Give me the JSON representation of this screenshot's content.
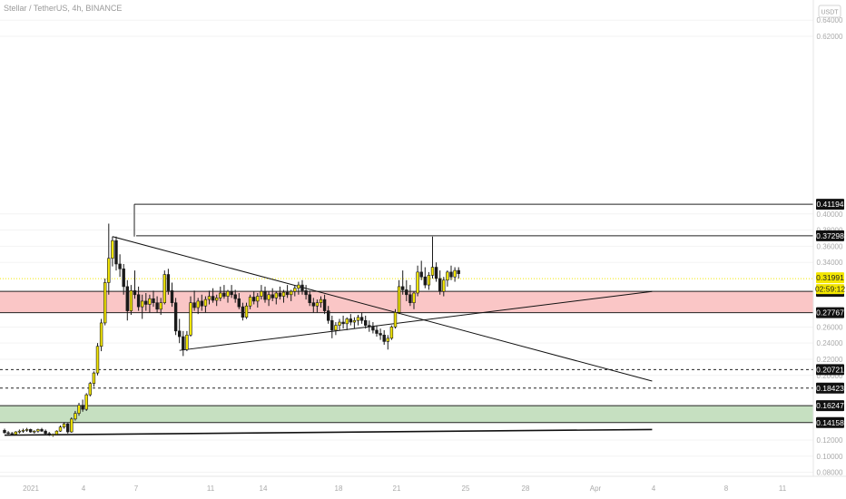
{
  "chart_data": {
    "type": "candlestick",
    "title": "Stellar / TetherUS, 4h, BINANCE",
    "currency_label": "USDT",
    "countdown": "02:59:12",
    "ylim": [
      0.075,
      0.665
    ],
    "y_ticks": [
      {
        "value": 0.64,
        "label": "0.64000"
      },
      {
        "value": 0.62,
        "label": "0.62000"
      },
      {
        "value": 0.4,
        "label": "0.40000"
      },
      {
        "value": 0.38,
        "label": "0.38000"
      },
      {
        "value": 0.36,
        "label": "0.36000"
      },
      {
        "value": 0.34,
        "label": "0.34000"
      },
      {
        "value": 0.26,
        "label": "0.26000"
      },
      {
        "value": 0.24,
        "label": "0.24000"
      },
      {
        "value": 0.22,
        "label": "0.22000"
      },
      {
        "value": 0.2,
        "label": "0.20000"
      },
      {
        "value": 0.12,
        "label": "0.12000"
      },
      {
        "value": 0.1,
        "label": "0.10000"
      },
      {
        "value": 0.08,
        "label": "0.08000"
      }
    ],
    "x_ticks": [
      "2021",
      "4",
      "7",
      "11",
      "14",
      "18",
      "21",
      "25",
      "28",
      "Apr",
      "4",
      "8",
      "11"
    ],
    "price_levels": [
      {
        "value": 0.41194,
        "label": "0.41194",
        "style": "solid",
        "dark": true
      },
      {
        "value": 0.37298,
        "label": "0.37298",
        "style": "solid",
        "dark": true
      },
      {
        "value": 0.30406,
        "label": "0.30406",
        "style": "solid",
        "dark": true
      },
      {
        "value": 0.27767,
        "label": "0.27767",
        "style": "solid",
        "dark": true
      },
      {
        "value": 0.20721,
        "label": "0.20721",
        "style": "dashed",
        "dark": true
      },
      {
        "value": 0.18423,
        "label": "0.18423",
        "style": "dashed",
        "dark": true
      },
      {
        "value": 0.16247,
        "label": "0.16247",
        "style": "solid",
        "dark": true
      },
      {
        "value": 0.14158,
        "label": "0.14158",
        "style": "solid",
        "dark": true
      }
    ],
    "current_price": {
      "value": 0.31991,
      "label": "0.31991",
      "color": "#f3e600"
    },
    "zones": [
      {
        "name": "resistance",
        "from": 0.27767,
        "to": 0.30406,
        "color": "#f8a8a8"
      },
      {
        "name": "support",
        "from": 0.14158,
        "to": 0.16247,
        "color": "#a8cf9f"
      }
    ],
    "trend_lines": [
      {
        "from": {
          "bar": 29,
          "price": 0.372
        },
        "to": {
          "bar": 174,
          "price": 0.193
        }
      },
      {
        "from": {
          "bar": 47,
          "price": 0.231
        },
        "to": {
          "bar": 174,
          "price": 0.304
        }
      },
      {
        "from": {
          "bar": 0,
          "price": 0.126
        },
        "to": {
          "bar": 174,
          "price": 0.133
        }
      }
    ],
    "candle_colors": {
      "up": "#f3e600",
      "down": "#1a1a1a",
      "wick": "#1a1a1a"
    },
    "candles": [
      [
        0.132,
        0.134,
        0.128,
        0.129
      ],
      [
        0.129,
        0.131,
        0.127,
        0.128
      ],
      [
        0.128,
        0.13,
        0.126,
        0.127
      ],
      [
        0.127,
        0.131,
        0.126,
        0.13
      ],
      [
        0.13,
        0.133,
        0.128,
        0.131
      ],
      [
        0.131,
        0.134,
        0.129,
        0.132
      ],
      [
        0.132,
        0.135,
        0.13,
        0.133
      ],
      [
        0.133,
        0.134,
        0.129,
        0.13
      ],
      [
        0.13,
        0.132,
        0.128,
        0.131
      ],
      [
        0.131,
        0.134,
        0.129,
        0.133
      ],
      [
        0.133,
        0.135,
        0.13,
        0.131
      ],
      [
        0.131,
        0.133,
        0.127,
        0.128
      ],
      [
        0.128,
        0.13,
        0.125,
        0.126
      ],
      [
        0.126,
        0.128,
        0.124,
        0.127
      ],
      [
        0.127,
        0.132,
        0.126,
        0.131
      ],
      [
        0.131,
        0.138,
        0.13,
        0.136
      ],
      [
        0.136,
        0.142,
        0.134,
        0.14
      ],
      [
        0.14,
        0.141,
        0.128,
        0.13
      ],
      [
        0.13,
        0.148,
        0.129,
        0.146
      ],
      [
        0.146,
        0.156,
        0.144,
        0.153
      ],
      [
        0.153,
        0.166,
        0.15,
        0.163
      ],
      [
        0.163,
        0.17,
        0.155,
        0.158
      ],
      [
        0.158,
        0.178,
        0.156,
        0.176
      ],
      [
        0.176,
        0.192,
        0.174,
        0.19
      ],
      [
        0.19,
        0.205,
        0.186,
        0.203
      ],
      [
        0.203,
        0.24,
        0.2,
        0.236
      ],
      [
        0.236,
        0.27,
        0.23,
        0.265
      ],
      [
        0.265,
        0.32,
        0.262,
        0.315
      ],
      [
        0.315,
        0.388,
        0.3,
        0.345
      ],
      [
        0.345,
        0.372,
        0.335,
        0.367
      ],
      [
        0.367,
        0.372,
        0.33,
        0.338
      ],
      [
        0.338,
        0.35,
        0.322,
        0.332
      ],
      [
        0.332,
        0.338,
        0.3,
        0.31
      ],
      [
        0.31,
        0.318,
        0.268,
        0.28
      ],
      [
        0.28,
        0.312,
        0.275,
        0.305
      ],
      [
        0.305,
        0.33,
        0.295,
        0.3
      ],
      [
        0.3,
        0.31,
        0.28,
        0.285
      ],
      [
        0.285,
        0.3,
        0.27,
        0.292
      ],
      [
        0.292,
        0.302,
        0.28,
        0.288
      ],
      [
        0.288,
        0.3,
        0.278,
        0.295
      ],
      [
        0.295,
        0.305,
        0.285,
        0.29
      ],
      [
        0.29,
        0.298,
        0.278,
        0.282
      ],
      [
        0.282,
        0.296,
        0.275,
        0.29
      ],
      [
        0.29,
        0.33,
        0.288,
        0.325
      ],
      [
        0.325,
        0.332,
        0.3,
        0.305
      ],
      [
        0.305,
        0.315,
        0.285,
        0.29
      ],
      [
        0.29,
        0.296,
        0.25,
        0.255
      ],
      [
        0.255,
        0.27,
        0.24,
        0.248
      ],
      [
        0.248,
        0.255,
        0.224,
        0.232
      ],
      [
        0.232,
        0.255,
        0.23,
        0.25
      ],
      [
        0.25,
        0.298,
        0.248,
        0.29
      ],
      [
        0.29,
        0.305,
        0.28,
        0.284
      ],
      [
        0.284,
        0.296,
        0.276,
        0.292
      ],
      [
        0.292,
        0.3,
        0.28,
        0.286
      ],
      [
        0.286,
        0.298,
        0.278,
        0.294
      ],
      [
        0.294,
        0.305,
        0.288,
        0.298
      ],
      [
        0.298,
        0.308,
        0.29,
        0.293
      ],
      [
        0.293,
        0.3,
        0.286,
        0.296
      ],
      [
        0.296,
        0.31,
        0.292,
        0.302
      ],
      [
        0.302,
        0.312,
        0.295,
        0.298
      ],
      [
        0.298,
        0.306,
        0.29,
        0.304
      ],
      [
        0.304,
        0.312,
        0.296,
        0.3
      ],
      [
        0.3,
        0.306,
        0.29,
        0.295
      ],
      [
        0.295,
        0.302,
        0.282,
        0.285
      ],
      [
        0.285,
        0.29,
        0.268,
        0.272
      ],
      [
        0.272,
        0.29,
        0.27,
        0.286
      ],
      [
        0.286,
        0.3,
        0.282,
        0.297
      ],
      [
        0.297,
        0.304,
        0.288,
        0.292
      ],
      [
        0.292,
        0.302,
        0.284,
        0.298
      ],
      [
        0.298,
        0.312,
        0.294,
        0.304
      ],
      [
        0.304,
        0.31,
        0.29,
        0.294
      ],
      [
        0.294,
        0.304,
        0.286,
        0.3
      ],
      [
        0.3,
        0.308,
        0.292,
        0.296
      ],
      [
        0.296,
        0.304,
        0.288,
        0.302
      ],
      [
        0.302,
        0.31,
        0.294,
        0.298
      ],
      [
        0.298,
        0.306,
        0.29,
        0.303
      ],
      [
        0.303,
        0.312,
        0.296,
        0.3
      ],
      [
        0.3,
        0.306,
        0.292,
        0.304
      ],
      [
        0.304,
        0.312,
        0.298,
        0.308
      ],
      [
        0.308,
        0.316,
        0.3,
        0.312
      ],
      [
        0.312,
        0.318,
        0.3,
        0.305
      ],
      [
        0.305,
        0.312,
        0.294,
        0.3
      ],
      [
        0.3,
        0.305,
        0.286,
        0.29
      ],
      [
        0.29,
        0.296,
        0.278,
        0.286
      ],
      [
        0.286,
        0.294,
        0.278,
        0.29
      ],
      [
        0.29,
        0.298,
        0.284,
        0.294
      ],
      [
        0.294,
        0.3,
        0.276,
        0.28
      ],
      [
        0.28,
        0.286,
        0.264,
        0.268
      ],
      [
        0.268,
        0.274,
        0.246,
        0.256
      ],
      [
        0.256,
        0.266,
        0.25,
        0.262
      ],
      [
        0.262,
        0.27,
        0.256,
        0.266
      ],
      [
        0.266,
        0.274,
        0.258,
        0.264
      ],
      [
        0.264,
        0.272,
        0.256,
        0.27
      ],
      [
        0.27,
        0.276,
        0.262,
        0.266
      ],
      [
        0.266,
        0.272,
        0.258,
        0.268
      ],
      [
        0.268,
        0.275,
        0.262,
        0.272
      ],
      [
        0.272,
        0.278,
        0.264,
        0.268
      ],
      [
        0.268,
        0.274,
        0.258,
        0.262
      ],
      [
        0.262,
        0.268,
        0.254,
        0.26
      ],
      [
        0.26,
        0.266,
        0.252,
        0.256
      ],
      [
        0.256,
        0.262,
        0.248,
        0.252
      ],
      [
        0.252,
        0.258,
        0.244,
        0.25
      ],
      [
        0.25,
        0.256,
        0.238,
        0.242
      ],
      [
        0.242,
        0.25,
        0.232,
        0.246
      ],
      [
        0.246,
        0.262,
        0.244,
        0.26
      ],
      [
        0.26,
        0.282,
        0.258,
        0.278
      ],
      [
        0.278,
        0.318,
        0.276,
        0.31
      ],
      [
        0.31,
        0.33,
        0.3,
        0.306
      ],
      [
        0.306,
        0.318,
        0.292,
        0.3
      ],
      [
        0.3,
        0.312,
        0.286,
        0.29
      ],
      [
        0.29,
        0.304,
        0.282,
        0.302
      ],
      [
        0.302,
        0.336,
        0.298,
        0.328
      ],
      [
        0.328,
        0.342,
        0.318,
        0.322
      ],
      [
        0.322,
        0.334,
        0.308,
        0.312
      ],
      [
        0.312,
        0.328,
        0.306,
        0.324
      ],
      [
        0.324,
        0.372,
        0.32,
        0.334
      ],
      [
        0.334,
        0.34,
        0.316,
        0.32
      ],
      [
        0.32,
        0.33,
        0.3,
        0.304
      ],
      [
        0.304,
        0.322,
        0.298,
        0.318
      ],
      [
        0.318,
        0.33,
        0.31,
        0.328
      ],
      [
        0.328,
        0.336,
        0.318,
        0.322
      ],
      [
        0.322,
        0.334,
        0.316,
        0.33
      ],
      [
        0.33,
        0.334,
        0.32,
        0.326
      ]
    ]
  }
}
